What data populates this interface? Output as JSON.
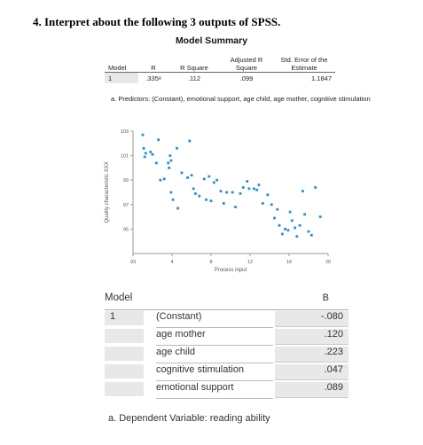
{
  "question": "4. Interpret about the following 3 outputs of SPSS.",
  "model_summary": {
    "title": "Model Summary",
    "headers": [
      "Model",
      "R",
      "R Square",
      "Adjusted R Square",
      "Std. Error of the Estimate"
    ],
    "row": [
      "1",
      ".335ᵃ",
      ".112",
      ".099",
      "1.1847"
    ],
    "footnote": "a. Predictors: (Constant), emotional support, age child, age mother, cognitive stimulation"
  },
  "chart_data": {
    "type": "scatter",
    "xlabel": "Process input",
    "ylabel": "Quality characteristic XXX",
    "xlim": [
      0,
      20
    ],
    "ylim": [
      93,
      103
    ],
    "x_ticks": [
      "93",
      "4",
      "8",
      "12",
      "16",
      "20"
    ],
    "y_ticks": [
      "103",
      "101",
      "99",
      "97",
      "95"
    ],
    "color": "#2a8fd0",
    "points": [
      [
        1.0,
        102.7
      ],
      [
        1.1,
        101.6
      ],
      [
        1.2,
        100.9
      ],
      [
        1.3,
        101.2
      ],
      [
        1.8,
        101.3
      ],
      [
        2.0,
        101.1
      ],
      [
        2.4,
        100.4
      ],
      [
        2.6,
        102.3
      ],
      [
        2.8,
        99.0
      ],
      [
        3.2,
        99.1
      ],
      [
        3.8,
        101.0
      ],
      [
        4.5,
        101.6
      ],
      [
        3.6,
        100.4
      ],
      [
        3.9,
        100.6
      ],
      [
        3.7,
        100.0
      ],
      [
        4.1,
        97.4
      ],
      [
        4.6,
        96.7
      ],
      [
        3.9,
        98.0
      ],
      [
        5.0,
        99.6
      ],
      [
        5.8,
        102.2
      ],
      [
        6.2,
        98.3
      ],
      [
        6.4,
        97.9
      ],
      [
        6.8,
        97.7
      ],
      [
        5.6,
        99.2
      ],
      [
        6.0,
        99.4
      ],
      [
        7.3,
        99.1
      ],
      [
        7.5,
        97.4
      ],
      [
        7.8,
        99.3
      ],
      [
        8.0,
        97.3
      ],
      [
        8.3,
        98.8
      ],
      [
        8.6,
        99.0
      ],
      [
        9.0,
        98.1
      ],
      [
        9.6,
        98.0
      ],
      [
        10.2,
        98.0
      ],
      [
        11.3,
        98.4
      ],
      [
        11.7,
        98.9
      ],
      [
        11.9,
        98.3
      ],
      [
        12.4,
        98.3
      ],
      [
        12.7,
        98.2
      ],
      [
        12.9,
        98.6
      ],
      [
        13.3,
        97.1
      ],
      [
        13.8,
        97.8
      ],
      [
        14.5,
        95.9
      ],
      [
        14.8,
        96.6
      ],
      [
        15.3,
        94.6
      ],
      [
        15.6,
        95.0
      ],
      [
        15.9,
        94.9
      ],
      [
        16.1,
        96.4
      ],
      [
        16.3,
        95.7
      ],
      [
        16.8,
        94.4
      ],
      [
        17.1,
        95.3
      ],
      [
        17.4,
        98.1
      ],
      [
        17.6,
        96.2
      ],
      [
        18.0,
        94.8
      ],
      [
        18.3,
        94.5
      ],
      [
        18.7,
        98.4
      ],
      [
        19.2,
        96.0
      ],
      [
        15.0,
        95.3
      ],
      [
        16.6,
        95.1
      ],
      [
        11.0,
        97.9
      ],
      [
        14.2,
        97.0
      ],
      [
        9.3,
        97.1
      ],
      [
        10.5,
        96.8
      ]
    ]
  },
  "coefficients": {
    "model_header": "Model",
    "b_header": "B",
    "model_number": "1",
    "rows": [
      {
        "label": "(Constant)",
        "value": "-.080"
      },
      {
        "label": "age mother",
        "value": ".120"
      },
      {
        "label": "age child",
        "value": ".223"
      },
      {
        "label": "cognitive stimulation",
        "value": ".047"
      },
      {
        "label": "emotional support",
        "value": ".089"
      }
    ],
    "footnote": "a. Dependent Variable: reading ability"
  }
}
